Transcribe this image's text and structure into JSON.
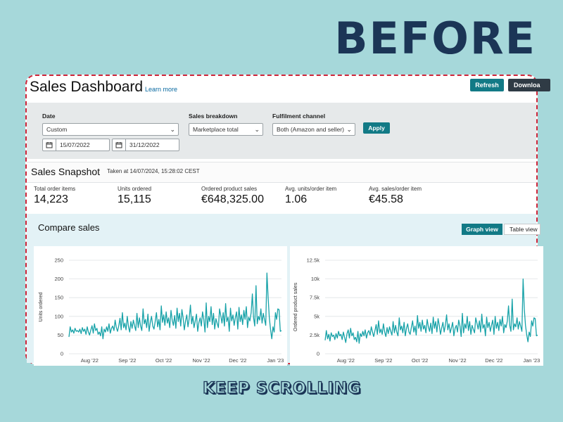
{
  "banner": {
    "before": "BEFORE",
    "keep_scrolling": "KEEP SCROLLING"
  },
  "header": {
    "title": "Sales Dashboard",
    "learn_more": "Learn more",
    "refresh_label": "Refresh",
    "download_label": "Downloa"
  },
  "filters": {
    "date_label": "Date",
    "date_range_value": "Custom",
    "start_date": "15/07/2022",
    "end_date": "31/12/2022",
    "breakdown_label": "Sales breakdown",
    "breakdown_value": "Marketplace total",
    "fulfilment_label": "Fulfilment channel",
    "fulfilment_value": "Both (Amazon and seller)",
    "apply_label": "Apply"
  },
  "snapshot": {
    "title": "Sales Snapshot",
    "taken_at": "Taken at 14/07/2024, 15:28:02 CEST",
    "metrics": [
      {
        "label": "Total order items",
        "value": "14,223"
      },
      {
        "label": "Units ordered",
        "value": "15,115"
      },
      {
        "label": "Ordered product sales",
        "value": "€648,325.00"
      },
      {
        "label": "Avg. units/order item",
        "value": "1.06"
      },
      {
        "label": "Avg. sales/order item",
        "value": "€45.58"
      }
    ]
  },
  "compare": {
    "title": "Compare sales",
    "graph_view_label": "Graph view",
    "table_view_label": "Table view"
  },
  "colors": {
    "line": "#17a2a8",
    "accent": "#127a86",
    "banner_text": "#1b3556",
    "background": "#a6d8da",
    "dashed_border": "#d0263a"
  },
  "chart_data": [
    {
      "type": "line",
      "title": "",
      "xlabel": "",
      "ylabel": "Units ordered",
      "ylim": [
        0,
        250
      ],
      "yticks": [
        0,
        50,
        100,
        150,
        200,
        250
      ],
      "ytick_labels": [
        "0",
        "50",
        "100",
        "150",
        "200",
        "250"
      ],
      "xtick_labels": [
        "Aug '22",
        "Sep '22",
        "Oct '22",
        "Nov '22",
        "Dec '22",
        "Jan '23"
      ],
      "xtick_days": [
        17,
        48,
        78,
        109,
        139,
        170
      ],
      "x_start_label": "15/07/2022",
      "values": [
        45,
        72,
        58,
        64,
        55,
        68,
        60,
        62,
        58,
        66,
        54,
        70,
        60,
        66,
        52,
        72,
        58,
        50,
        64,
        75,
        55,
        80,
        62,
        68,
        52,
        58,
        48,
        72,
        40,
        66,
        58,
        72,
        60,
        80,
        55,
        68,
        74,
        62,
        90,
        70,
        60,
        75,
        95,
        64,
        110,
        70,
        82,
        64,
        100,
        72,
        58,
        86,
        68,
        90,
        75,
        62,
        108,
        70,
        96,
        74,
        62,
        120,
        80,
        92,
        70,
        106,
        60,
        84,
        100,
        74,
        66,
        86,
        110,
        72,
        92,
        64,
        128,
        84,
        104,
        76,
        112,
        82,
        96,
        70,
        116,
        90,
        76,
        102,
        68,
        122,
        86,
        108,
        74,
        118,
        96,
        64,
        88,
        104,
        72,
        94,
        130,
        80,
        100,
        70,
        88,
        106,
        60,
        84,
        96,
        74,
        112,
        92,
        58,
        136,
        70,
        100,
        86,
        126,
        78,
        108,
        66,
        94,
        82,
        70,
        120,
        102,
        82,
        110,
        74,
        134,
        86,
        98,
        60,
        122,
        88,
        104,
        76,
        96,
        112,
        66,
        124,
        86,
        104,
        78,
        116,
        92,
        126,
        70,
        98,
        88,
        110,
        160,
        96,
        74,
        182,
        80,
        100,
        90,
        120,
        82,
        108,
        92,
        76,
        216,
        150,
        96,
        64,
        40,
        72,
        58,
        110,
        92,
        120,
        118,
        60,
        62
      ]
    },
    {
      "type": "line",
      "title": "",
      "xlabel": "",
      "ylabel": "Ordered product sales",
      "ylim": [
        0,
        12500
      ],
      "yticks": [
        0,
        2500,
        5000,
        7500,
        10000,
        12500
      ],
      "ytick_labels": [
        "0",
        "2.5k",
        "5k",
        "7.5k",
        "10k",
        "12.5k"
      ],
      "xtick_labels": [
        "Aug '22",
        "Sep '22",
        "Oct '22",
        "Nov '22",
        "Dec '22",
        "Jan '23"
      ],
      "xtick_days": [
        17,
        48,
        78,
        109,
        139,
        170
      ],
      "x_start_label": "15/07/2022",
      "values": [
        1800,
        3100,
        2000,
        2600,
        1700,
        2800,
        2300,
        2500,
        1900,
        2700,
        2100,
        3000,
        2400,
        2600,
        1900,
        2900,
        2200,
        1500,
        2700,
        3200,
        2100,
        3400,
        2400,
        2800,
        1900,
        2200,
        1600,
        3000,
        1400,
        2700,
        2300,
        3000,
        2400,
        3200,
        2100,
        2800,
        3100,
        2500,
        3600,
        2900,
        2300,
        3100,
        3900,
        2600,
        4400,
        2800,
        3300,
        2600,
        4000,
        2900,
        2300,
        3500,
        2700,
        3600,
        3000,
        2500,
        4300,
        2800,
        3800,
        2900,
        2400,
        4800,
        3200,
        3700,
        2800,
        4200,
        2400,
        3400,
        4000,
        2900,
        2600,
        3500,
        4400,
        2900,
        3700,
        2500,
        5100,
        3400,
        4200,
        3000,
        4500,
        3300,
        3800,
        2800,
        4600,
        3600,
        3000,
        4100,
        2700,
        4900,
        3400,
        4300,
        2900,
        4700,
        3800,
        2600,
        3500,
        4200,
        2900,
        3800,
        5200,
        3200,
        4000,
        2800,
        3500,
        4200,
        2400,
        3400,
        3800,
        2900,
        4500,
        3700,
        2300,
        5400,
        2800,
        4000,
        3400,
        5000,
        3100,
        4300,
        2600,
        3800,
        3300,
        2800,
        4800,
        4100,
        3300,
        4400,
        2900,
        5300,
        3400,
        3900,
        2400,
        4900,
        3500,
        4200,
        3000,
        3800,
        4500,
        2600,
        5000,
        3400,
        4200,
        3100,
        4600,
        3700,
        5000,
        2800,
        3900,
        3500,
        4400,
        6400,
        3800,
        3000,
        7300,
        3200,
        4000,
        3600,
        4800,
        3300,
        4300,
        3700,
        3000,
        10000,
        6000,
        3800,
        2500,
        1600,
        2900,
        2300,
        4400,
        3700,
        4800,
        4700,
        2400,
        2500
      ]
    }
  ]
}
